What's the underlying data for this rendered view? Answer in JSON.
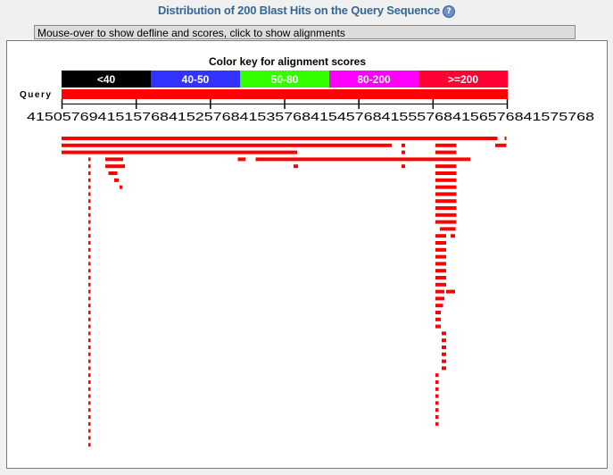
{
  "header": {
    "title": "Distribution of 200 Blast Hits on the Query Sequence",
    "help_icon": "help-icon"
  },
  "status_bar": {
    "text": "Mouse-over to show defline and scores, click to show alignments"
  },
  "chart_data": {
    "type": "alignment-graphic",
    "title": "Color key for alignment scores",
    "color_key": [
      {
        "label": "<40",
        "color": "#000000"
      },
      {
        "label": "40-50",
        "color": "#3333ff"
      },
      {
        "label": "50-80",
        "color": "#33ff00"
      },
      {
        "label": "80-200",
        "color": "#ff00ff"
      },
      {
        "label": ">=200",
        "color": "#ff0033"
      }
    ],
    "query_label": "Query",
    "axis": {
      "tick_labels": [
        "415057694",
        "151576841",
        "525768415",
        "357684154",
        "576841555",
        "768415657",
        "6841575768"
      ],
      "tick_label_text": "4150576941515768415257684153576841545768415557684156576841575768"
    },
    "hit_color": "#ff0000",
    "hits": [
      {
        "row": 0,
        "segments": [
          [
            0,
            0.977
          ],
          [
            0.993,
            0.995
          ]
        ]
      },
      {
        "row": 1,
        "segments": [
          [
            0,
            0.74
          ],
          [
            0.762,
            0.77
          ],
          [
            0.838,
            0.885
          ],
          [
            0.972,
            0.997
          ]
        ]
      },
      {
        "row": 2,
        "segments": [
          [
            0,
            0.528
          ],
          [
            0.762,
            0.77
          ],
          [
            0.838,
            0.885
          ]
        ]
      },
      {
        "row": 3,
        "segments": [
          [
            0.06,
            0.065
          ],
          [
            0.098,
            0.138
          ],
          [
            0.395,
            0.412
          ],
          [
            0.435,
            0.916
          ]
        ]
      },
      {
        "row": 4,
        "segments": [
          [
            0.06,
            0.065
          ],
          [
            0.098,
            0.142
          ],
          [
            0.52,
            0.53
          ],
          [
            0.762,
            0.77
          ],
          [
            0.838,
            0.885
          ]
        ]
      },
      {
        "row": 5,
        "segments": [
          [
            0.06,
            0.065
          ],
          [
            0.105,
            0.125
          ],
          [
            0.838,
            0.885
          ]
        ]
      },
      {
        "row": 6,
        "segments": [
          [
            0.06,
            0.065
          ],
          [
            0.118,
            0.128
          ],
          [
            0.838,
            0.885
          ]
        ]
      },
      {
        "row": 7,
        "segments": [
          [
            0.06,
            0.065
          ],
          [
            0.13,
            0.136
          ],
          [
            0.838,
            0.885
          ]
        ]
      },
      {
        "row": 8,
        "segments": [
          [
            0.06,
            0.065
          ],
          [
            0.838,
            0.885
          ]
        ]
      },
      {
        "row": 9,
        "segments": [
          [
            0.06,
            0.065
          ],
          [
            0.838,
            0.885
          ]
        ]
      },
      {
        "row": 10,
        "segments": [
          [
            0.06,
            0.065
          ],
          [
            0.838,
            0.885
          ]
        ]
      },
      {
        "row": 11,
        "segments": [
          [
            0.06,
            0.065
          ],
          [
            0.838,
            0.885
          ]
        ]
      },
      {
        "row": 12,
        "segments": [
          [
            0.06,
            0.065
          ],
          [
            0.838,
            0.885
          ]
        ]
      },
      {
        "row": 13,
        "segments": [
          [
            0.06,
            0.065
          ],
          [
            0.848,
            0.883
          ]
        ]
      },
      {
        "row": 14,
        "segments": [
          [
            0.06,
            0.065
          ],
          [
            0.838,
            0.862
          ],
          [
            0.872,
            0.882
          ]
        ]
      },
      {
        "row": 15,
        "segments": [
          [
            0.06,
            0.065
          ],
          [
            0.838,
            0.862
          ]
        ]
      },
      {
        "row": 16,
        "segments": [
          [
            0.06,
            0.065
          ],
          [
            0.838,
            0.862
          ]
        ]
      },
      {
        "row": 17,
        "segments": [
          [
            0.06,
            0.065
          ],
          [
            0.838,
            0.862
          ]
        ]
      },
      {
        "row": 18,
        "segments": [
          [
            0.06,
            0.065
          ],
          [
            0.838,
            0.862
          ]
        ]
      },
      {
        "row": 19,
        "segments": [
          [
            0.06,
            0.065
          ],
          [
            0.838,
            0.862
          ]
        ]
      },
      {
        "row": 20,
        "segments": [
          [
            0.06,
            0.065
          ],
          [
            0.838,
            0.862
          ]
        ]
      },
      {
        "row": 21,
        "segments": [
          [
            0.06,
            0.065
          ],
          [
            0.838,
            0.862
          ]
        ]
      },
      {
        "row": 22,
        "segments": [
          [
            0.06,
            0.065
          ],
          [
            0.838,
            0.858
          ],
          [
            0.862,
            0.882
          ]
        ]
      },
      {
        "row": 23,
        "segments": [
          [
            0.06,
            0.065
          ],
          [
            0.838,
            0.858
          ]
        ]
      },
      {
        "row": 24,
        "segments": [
          [
            0.06,
            0.065
          ],
          [
            0.838,
            0.855
          ]
        ]
      },
      {
        "row": 25,
        "segments": [
          [
            0.06,
            0.065
          ],
          [
            0.838,
            0.85
          ]
        ]
      },
      {
        "row": 26,
        "segments": [
          [
            0.06,
            0.065
          ],
          [
            0.838,
            0.85
          ]
        ]
      },
      {
        "row": 27,
        "segments": [
          [
            0.06,
            0.065
          ],
          [
            0.838,
            0.85
          ]
        ]
      },
      {
        "row": 28,
        "segments": [
          [
            0.06,
            0.065
          ],
          [
            0.852,
            0.862
          ]
        ]
      },
      {
        "row": 29,
        "segments": [
          [
            0.06,
            0.065
          ],
          [
            0.852,
            0.862
          ]
        ]
      },
      {
        "row": 30,
        "segments": [
          [
            0.06,
            0.065
          ],
          [
            0.852,
            0.862
          ]
        ]
      },
      {
        "row": 31,
        "segments": [
          [
            0.06,
            0.065
          ],
          [
            0.852,
            0.862
          ]
        ]
      },
      {
        "row": 32,
        "segments": [
          [
            0.06,
            0.065
          ],
          [
            0.852,
            0.862
          ]
        ]
      },
      {
        "row": 33,
        "segments": [
          [
            0.06,
            0.065
          ],
          [
            0.852,
            0.862
          ]
        ]
      },
      {
        "row": 34,
        "segments": [
          [
            0.06,
            0.065
          ],
          [
            0.838,
            0.845
          ]
        ]
      },
      {
        "row": 35,
        "segments": [
          [
            0.06,
            0.065
          ],
          [
            0.838,
            0.845
          ]
        ]
      },
      {
        "row": 36,
        "segments": [
          [
            0.06,
            0.065
          ],
          [
            0.838,
            0.845
          ]
        ]
      },
      {
        "row": 37,
        "segments": [
          [
            0.06,
            0.065
          ],
          [
            0.838,
            0.845
          ]
        ]
      },
      {
        "row": 38,
        "segments": [
          [
            0.06,
            0.065
          ],
          [
            0.838,
            0.845
          ]
        ]
      },
      {
        "row": 39,
        "segments": [
          [
            0.06,
            0.065
          ],
          [
            0.838,
            0.845
          ]
        ]
      },
      {
        "row": 40,
        "segments": [
          [
            0.06,
            0.065
          ],
          [
            0.838,
            0.845
          ]
        ]
      },
      {
        "row": 41,
        "segments": [
          [
            0.06,
            0.065
          ],
          [
            0.838,
            0.845
          ]
        ]
      },
      {
        "row": 42,
        "segments": [
          [
            0.06,
            0.065
          ]
        ]
      },
      {
        "row": 43,
        "segments": [
          [
            0.06,
            0.065
          ]
        ]
      },
      {
        "row": 44,
        "segments": [
          [
            0.06,
            0.065
          ]
        ]
      }
    ]
  }
}
